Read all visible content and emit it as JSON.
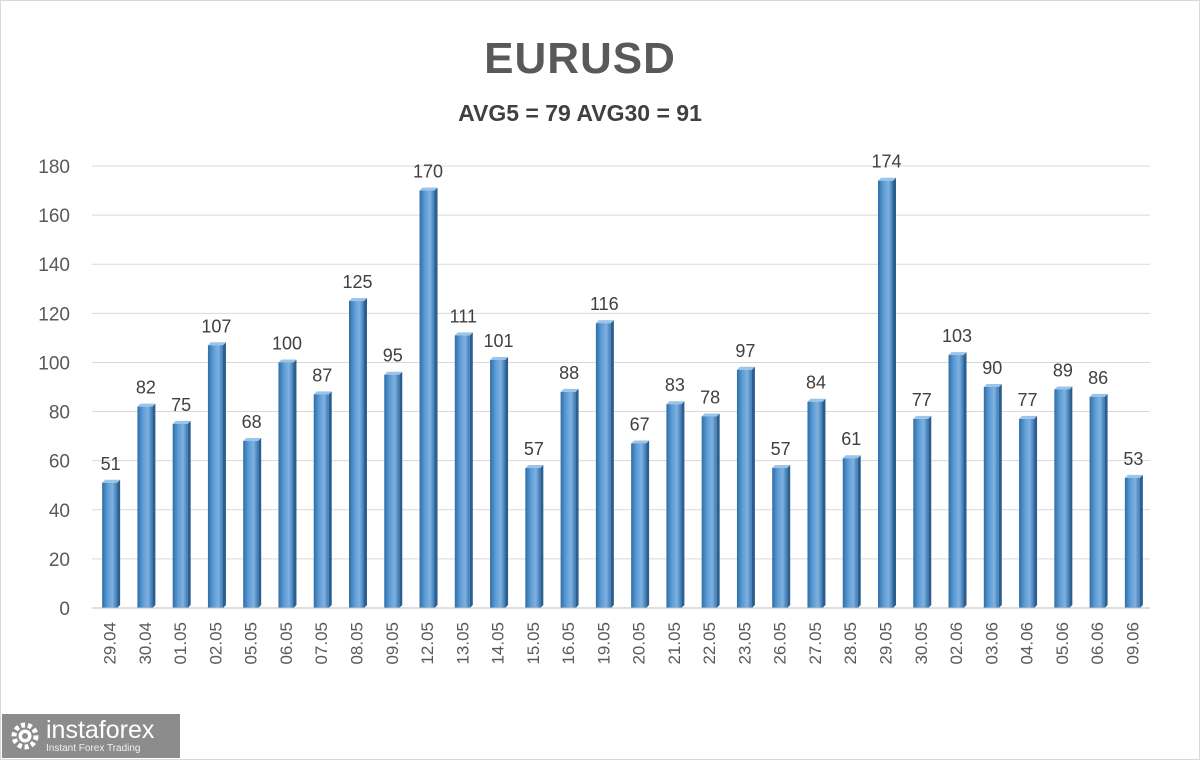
{
  "brand": {
    "name": "instaforex",
    "tagline": "Instant Forex Trading"
  },
  "chart_data": {
    "type": "bar",
    "title": "EURUSD",
    "subtitle": "AVG5 = 79 AVG30 = 91",
    "xlabel": "",
    "ylabel": "",
    "ylim": [
      0,
      180
    ],
    "yticks": [
      0,
      20,
      40,
      60,
      80,
      100,
      120,
      140,
      160,
      180
    ],
    "grid": true,
    "data_labels": true,
    "bar_color": "#5b9bd5",
    "categories": [
      "29.04",
      "30.04",
      "01.05",
      "02.05",
      "05.05",
      "06.05",
      "07.05",
      "08.05",
      "09.05",
      "12.05",
      "13.05",
      "14.05",
      "15.05",
      "16.05",
      "19.05",
      "20.05",
      "21.05",
      "22.05",
      "23.05",
      "26.05",
      "27.05",
      "28.05",
      "29.05",
      "30.05",
      "02.06",
      "03.06",
      "04.06",
      "05.06",
      "06.06",
      "09.06"
    ],
    "values": [
      51,
      82,
      75,
      107,
      68,
      100,
      87,
      125,
      95,
      170,
      111,
      101,
      57,
      88,
      116,
      67,
      83,
      78,
      97,
      57,
      84,
      61,
      174,
      77,
      103,
      90,
      77,
      89,
      86,
      53
    ]
  }
}
